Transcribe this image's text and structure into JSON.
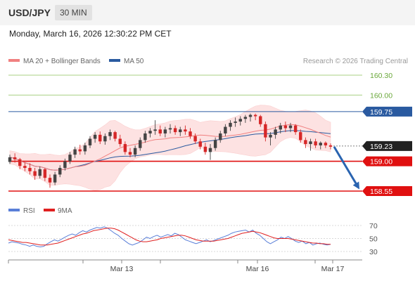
{
  "header": {
    "symbol": "USD/JPY",
    "timeframe": "30 MIN"
  },
  "datetime": "Monday, March 16, 2026 12:30:22 PM CET",
  "legend": {
    "ma20": "MA 20 + Bollinger Bands",
    "ma50": "MA 50",
    "copyright": "Research © 2026 Trading Central"
  },
  "rsi_legend": {
    "rsi": "RSI",
    "ma": "9MA"
  },
  "colors": {
    "bull_candle": "#444444",
    "bear_candle": "#d62728",
    "ma20": "#f08080",
    "ma50": "#2a5aa0",
    "bollinger_fill": "#fde2e2",
    "resistance": "#8cc05a",
    "pivot": "#2a5aa0",
    "support": "#e01010",
    "current_price_tag": "#222222",
    "arrow": "#2a64b0",
    "rsi": "#5a7fd8",
    "rsi_ma": "#e02020"
  },
  "chart_data": [
    {
      "type": "candlestick",
      "title": "USD/JPY",
      "timeframe": "30 MIN",
      "x_ticks": [
        "Mar 13",
        "Mar 16",
        "Mar 17"
      ],
      "levels": [
        {
          "label": "160.30",
          "value": 160.3,
          "kind": "resistance"
        },
        {
          "label": "160.00",
          "value": 160.0,
          "kind": "resistance"
        },
        {
          "label": "159.75",
          "value": 159.75,
          "kind": "pivot"
        },
        {
          "label": "159.23",
          "value": 159.23,
          "kind": "current"
        },
        {
          "label": "159.00",
          "value": 159.0,
          "kind": "support"
        },
        {
          "label": "158.55",
          "value": 158.55,
          "kind": "support"
        }
      ],
      "current_price": 159.23,
      "forecast": {
        "direction": "down",
        "from": 159.22,
        "to": 158.57
      },
      "series": [
        {
          "name": "MA 20 + Bollinger Bands"
        },
        {
          "name": "MA 50"
        }
      ],
      "ylim": [
        158.55,
        160.35
      ],
      "candles": [
        [
          158.99,
          159.1,
          158.96,
          159.06
        ],
        [
          159.06,
          159.12,
          158.98,
          159.03
        ],
        [
          159.03,
          159.05,
          158.88,
          158.93
        ],
        [
          158.93,
          158.98,
          158.85,
          158.9
        ],
        [
          158.9,
          158.97,
          158.8,
          158.85
        ],
        [
          158.85,
          158.9,
          158.72,
          158.78
        ],
        [
          158.78,
          158.92,
          158.74,
          158.88
        ],
        [
          158.88,
          158.9,
          158.7,
          158.75
        ],
        [
          158.75,
          158.8,
          158.6,
          158.68
        ],
        [
          158.68,
          158.84,
          158.64,
          158.8
        ],
        [
          158.8,
          158.94,
          158.76,
          158.9
        ],
        [
          158.9,
          159.04,
          158.86,
          159.0
        ],
        [
          159.0,
          159.14,
          158.96,
          159.1
        ],
        [
          159.1,
          159.22,
          159.05,
          159.18
        ],
        [
          159.18,
          159.25,
          159.1,
          159.15
        ],
        [
          159.15,
          159.28,
          159.1,
          159.24
        ],
        [
          159.24,
          159.38,
          159.2,
          159.34
        ],
        [
          159.34,
          159.44,
          159.28,
          159.4
        ],
        [
          159.4,
          159.45,
          159.26,
          159.3
        ],
        [
          159.3,
          159.42,
          159.25,
          159.38
        ],
        [
          159.38,
          159.48,
          159.32,
          159.44
        ],
        [
          159.44,
          159.46,
          159.3,
          159.34
        ],
        [
          159.34,
          159.4,
          159.22,
          159.26
        ],
        [
          159.26,
          159.3,
          159.1,
          159.14
        ],
        [
          159.14,
          159.2,
          159.06,
          159.1
        ],
        [
          159.1,
          159.24,
          159.06,
          159.2
        ],
        [
          159.2,
          159.36,
          159.16,
          159.32
        ],
        [
          159.32,
          159.46,
          159.28,
          159.42
        ],
        [
          159.42,
          159.5,
          159.36,
          159.46
        ],
        [
          159.46,
          159.62,
          159.4,
          159.48
        ],
        [
          159.48,
          159.54,
          159.38,
          159.42
        ],
        [
          159.42,
          159.52,
          159.36,
          159.48
        ],
        [
          159.48,
          159.56,
          159.42,
          159.5
        ],
        [
          159.5,
          159.54,
          159.4,
          159.44
        ],
        [
          159.44,
          159.52,
          159.38,
          159.48
        ],
        [
          159.48,
          159.54,
          159.4,
          159.45
        ],
        [
          159.45,
          159.5,
          159.34,
          159.38
        ],
        [
          159.38,
          159.42,
          159.26,
          159.3
        ],
        [
          159.3,
          159.34,
          159.18,
          159.22
        ],
        [
          159.22,
          159.28,
          159.1,
          159.14
        ],
        [
          159.14,
          159.26,
          159.02,
          159.2
        ],
        [
          159.2,
          159.36,
          159.16,
          159.32
        ],
        [
          159.32,
          159.46,
          159.28,
          159.42
        ],
        [
          159.42,
          159.56,
          159.38,
          159.52
        ],
        [
          159.52,
          159.62,
          159.46,
          159.58
        ],
        [
          159.58,
          159.66,
          159.52,
          159.6
        ],
        [
          159.6,
          159.68,
          159.54,
          159.64
        ],
        [
          159.64,
          159.7,
          159.58,
          159.67
        ],
        [
          159.67,
          159.72,
          159.6,
          159.7
        ],
        [
          159.7,
          159.72,
          159.62,
          159.68
        ],
        [
          159.68,
          159.7,
          159.52,
          159.56
        ],
        [
          159.56,
          159.6,
          159.3,
          159.36
        ],
        [
          159.36,
          159.44,
          159.24,
          159.4
        ],
        [
          159.4,
          159.52,
          159.34,
          159.48
        ],
        [
          159.48,
          159.58,
          159.42,
          159.54
        ],
        [
          159.54,
          159.6,
          159.44,
          159.5
        ],
        [
          159.5,
          159.58,
          159.44,
          159.54
        ],
        [
          159.54,
          159.56,
          159.4,
          159.44
        ],
        [
          159.44,
          159.48,
          159.28,
          159.32
        ],
        [
          159.32,
          159.36,
          159.2,
          159.26
        ],
        [
          159.26,
          159.34,
          159.16,
          159.3
        ],
        [
          159.3,
          159.34,
          159.2,
          159.24
        ],
        [
          159.24,
          159.3,
          159.18,
          159.28
        ],
        [
          159.28,
          159.3,
          159.2,
          159.24
        ],
        [
          159.24,
          159.27,
          159.18,
          159.22
        ]
      ]
    },
    {
      "type": "line",
      "title": "RSI",
      "series": [
        {
          "name": "RSI",
          "values": [
            43,
            45,
            44,
            43,
            41,
            40,
            38,
            40,
            38,
            37,
            38,
            42,
            45,
            48,
            46,
            49,
            52,
            55,
            57,
            55,
            59,
            62,
            60,
            63,
            65,
            67,
            66,
            68,
            66,
            62,
            58,
            55,
            50,
            46,
            42,
            40,
            42,
            44,
            48,
            52,
            50,
            53,
            55,
            52,
            54,
            56,
            54,
            58,
            56,
            52,
            48,
            46,
            44,
            42,
            44,
            46,
            48,
            45,
            47,
            49,
            51,
            53,
            55,
            58,
            60,
            61,
            62,
            63,
            60,
            63,
            58,
            55,
            50,
            45,
            42,
            45,
            48,
            52,
            50,
            53,
            50,
            46,
            44,
            46,
            42,
            44,
            40,
            42,
            43,
            41,
            40,
            41
          ]
        },
        {
          "name": "9MA",
          "values": [
            48,
            47,
            46,
            45,
            44,
            44,
            43,
            42,
            41,
            40,
            40,
            40,
            41,
            42,
            43,
            45,
            47,
            49,
            51,
            53,
            55,
            57,
            58,
            60,
            62,
            63,
            64,
            65,
            66,
            66,
            65,
            63,
            60,
            57,
            54,
            51,
            48,
            46,
            45,
            45,
            46,
            47,
            48,
            50,
            51,
            52,
            53,
            54,
            55,
            55,
            54,
            52,
            50,
            48,
            47,
            46,
            46,
            46,
            46,
            47,
            48,
            49,
            50,
            52,
            54,
            56,
            58,
            59,
            60,
            61,
            60,
            59,
            57,
            55,
            53,
            51,
            50,
            50,
            50,
            50,
            49,
            48,
            47,
            46,
            45,
            44,
            43,
            43,
            42,
            42,
            41,
            41
          ]
        }
      ],
      "ylim": [
        20,
        80
      ],
      "y_ticks": [
        "70",
        "50",
        "30"
      ],
      "grid": true
    }
  ]
}
